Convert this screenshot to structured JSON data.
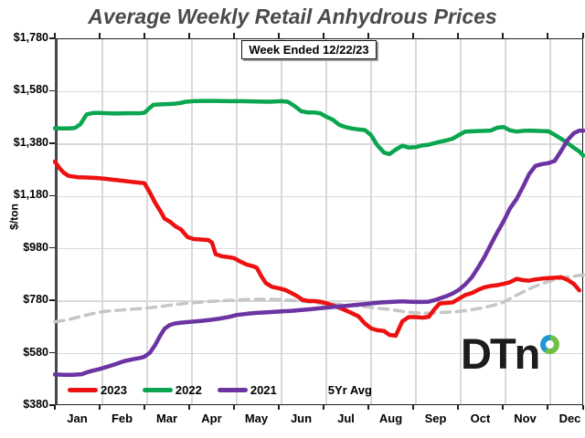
{
  "title": "Average Weekly Retail Anhydrous Prices",
  "annotation": "Week Ended 12/22/23",
  "y_axis": {
    "label": "$/ton",
    "tick_labels": [
      "$1,780",
      "$1,580",
      "$1,380",
      "$1,180",
      "$980",
      "$780",
      "$580",
      "$380"
    ]
  },
  "x_axis": {
    "tick_labels": [
      "Jan",
      "Feb",
      "Mar",
      "Apr",
      "May",
      "Jun",
      "Jul",
      "Aug",
      "Sep",
      "Oct",
      "Nov",
      "Dec"
    ]
  },
  "logo_text": "DTn",
  "colors": {
    "red_2023": "#ed1111",
    "green_2022": "#0aa64f",
    "purple_2021": "#6c34a2",
    "gray_5yr": "#c6c6c6",
    "title_gray": "#4a4a4a",
    "gridline": "#d9d9d9",
    "logo_blue": "#2397d4",
    "logo_green": "#70bf44"
  },
  "chart_data": {
    "type": "line",
    "title": "Average Weekly Retail Anhydrous Prices",
    "subtitle": "Week Ended 12/22/23",
    "ylabel": "$/ton",
    "ylim": [
      380,
      1780
    ],
    "y_gridline_step": 200,
    "xlim": [
      0,
      11.8
    ],
    "x_unit": "month index from Jan 1 (0=Jan 1, 11=Dec 1); points are weekly prices in $/ton",
    "grid": true,
    "legend_position": "bottom-inside",
    "series": [
      {
        "name": "5Yr Avg",
        "color": "#c6c6c6",
        "style": "dashed",
        "width": 3.5,
        "points": [
          [
            0,
            698
          ],
          [
            0.3,
            706
          ],
          [
            0.57,
            718
          ],
          [
            0.86,
            730
          ],
          [
            1.12,
            738
          ],
          [
            1.4,
            742
          ],
          [
            1.7,
            746
          ],
          [
            2.0,
            749
          ],
          [
            2.3,
            755
          ],
          [
            2.6,
            762
          ],
          [
            2.9,
            768
          ],
          [
            3.2,
            772
          ],
          [
            3.5,
            776
          ],
          [
            3.8,
            779
          ],
          [
            4.0,
            781
          ],
          [
            4.3,
            783
          ],
          [
            4.6,
            784
          ],
          [
            4.9,
            784
          ],
          [
            5.2,
            781
          ],
          [
            5.5,
            777
          ],
          [
            5.8,
            771
          ],
          [
            6.0,
            768
          ],
          [
            6.3,
            765
          ],
          [
            6.6,
            761
          ],
          [
            6.9,
            756
          ],
          [
            7.2,
            750
          ],
          [
            7.5,
            745
          ],
          [
            7.76,
            738
          ],
          [
            8.0,
            733
          ],
          [
            8.3,
            731
          ],
          [
            8.6,
            733
          ],
          [
            8.9,
            736
          ],
          [
            9.2,
            741
          ],
          [
            9.5,
            750
          ],
          [
            9.8,
            761
          ],
          [
            10.0,
            772
          ],
          [
            10.2,
            790
          ],
          [
            10.45,
            812
          ],
          [
            10.7,
            832
          ],
          [
            10.9,
            845
          ],
          [
            11.1,
            856
          ],
          [
            11.3,
            864
          ],
          [
            11.5,
            870
          ],
          [
            11.7,
            875
          ],
          [
            11.8,
            877
          ]
        ]
      },
      {
        "name": "2023",
        "color": "#ed1111",
        "style": "solid",
        "width": 4.5,
        "points": [
          [
            0,
            1310
          ],
          [
            0.1,
            1285
          ],
          [
            0.2,
            1267
          ],
          [
            0.31,
            1255
          ],
          [
            0.51,
            1250
          ],
          [
            0.71,
            1249
          ],
          [
            0.92,
            1247
          ],
          [
            1.12,
            1244
          ],
          [
            1.33,
            1240
          ],
          [
            1.53,
            1236
          ],
          [
            1.73,
            1232
          ],
          [
            1.9,
            1229
          ],
          [
            2.0,
            1227
          ],
          [
            2.12,
            1192
          ],
          [
            2.24,
            1152
          ],
          [
            2.35,
            1122
          ],
          [
            2.45,
            1092
          ],
          [
            2.57,
            1080
          ],
          [
            2.69,
            1063
          ],
          [
            2.82,
            1050
          ],
          [
            2.96,
            1022
          ],
          [
            3.1,
            1014
          ],
          [
            3.27,
            1012
          ],
          [
            3.43,
            1010
          ],
          [
            3.51,
            1000
          ],
          [
            3.59,
            956
          ],
          [
            3.73,
            948
          ],
          [
            3.88,
            945
          ],
          [
            4.0,
            941
          ],
          [
            4.14,
            928
          ],
          [
            4.29,
            916
          ],
          [
            4.43,
            910
          ],
          [
            4.51,
            904
          ],
          [
            4.61,
            872
          ],
          [
            4.71,
            846
          ],
          [
            4.84,
            832
          ],
          [
            5.0,
            826
          ],
          [
            5.14,
            820
          ],
          [
            5.27,
            809
          ],
          [
            5.41,
            796
          ],
          [
            5.53,
            782
          ],
          [
            5.65,
            778
          ],
          [
            5.8,
            777
          ],
          [
            5.92,
            775
          ],
          [
            6.06,
            769
          ],
          [
            6.2,
            761
          ],
          [
            6.35,
            752
          ],
          [
            6.49,
            742
          ],
          [
            6.63,
            731
          ],
          [
            6.78,
            719
          ],
          [
            6.92,
            692
          ],
          [
            7.06,
            673
          ],
          [
            7.2,
            666
          ],
          [
            7.35,
            663
          ],
          [
            7.47,
            648
          ],
          [
            7.61,
            645
          ],
          [
            7.76,
            700
          ],
          [
            7.9,
            716
          ],
          [
            8.06,
            716
          ],
          [
            8.2,
            714
          ],
          [
            8.35,
            717
          ],
          [
            8.47,
            745
          ],
          [
            8.59,
            768
          ],
          [
            8.73,
            770
          ],
          [
            8.88,
            772
          ],
          [
            9.02,
            786
          ],
          [
            9.16,
            800
          ],
          [
            9.31,
            808
          ],
          [
            9.45,
            820
          ],
          [
            9.59,
            830
          ],
          [
            9.73,
            835
          ],
          [
            9.88,
            838
          ],
          [
            10.02,
            843
          ],
          [
            10.16,
            849
          ],
          [
            10.31,
            862
          ],
          [
            10.45,
            857
          ],
          [
            10.59,
            855
          ],
          [
            10.73,
            860
          ],
          [
            10.88,
            863
          ],
          [
            11.02,
            865
          ],
          [
            11.16,
            866
          ],
          [
            11.31,
            868
          ],
          [
            11.45,
            858
          ],
          [
            11.59,
            842
          ],
          [
            11.71,
            818
          ]
        ]
      },
      {
        "name": "2022",
        "color": "#0aa64f",
        "style": "solid",
        "width": 4.5,
        "points": [
          [
            0,
            1437
          ],
          [
            0.15,
            1436
          ],
          [
            0.3,
            1436
          ],
          [
            0.45,
            1438
          ],
          [
            0.57,
            1452
          ],
          [
            0.71,
            1490
          ],
          [
            0.86,
            1495
          ],
          [
            1.0,
            1495
          ],
          [
            1.3,
            1493
          ],
          [
            1.6,
            1494
          ],
          [
            1.9,
            1494
          ],
          [
            2.0,
            1496
          ],
          [
            2.1,
            1512
          ],
          [
            2.2,
            1526
          ],
          [
            2.35,
            1528
          ],
          [
            2.5,
            1529
          ],
          [
            2.65,
            1530
          ],
          [
            2.8,
            1533
          ],
          [
            2.92,
            1538
          ],
          [
            3.1,
            1540
          ],
          [
            3.3,
            1541
          ],
          [
            3.6,
            1541
          ],
          [
            3.9,
            1540
          ],
          [
            4.2,
            1540
          ],
          [
            4.5,
            1539
          ],
          [
            4.8,
            1538
          ],
          [
            5.06,
            1540
          ],
          [
            5.2,
            1538
          ],
          [
            5.35,
            1522
          ],
          [
            5.5,
            1502
          ],
          [
            5.65,
            1497
          ],
          [
            5.8,
            1497
          ],
          [
            5.92,
            1494
          ],
          [
            6.06,
            1481
          ],
          [
            6.2,
            1470
          ],
          [
            6.35,
            1450
          ],
          [
            6.49,
            1441
          ],
          [
            6.63,
            1436
          ],
          [
            6.78,
            1432
          ],
          [
            6.92,
            1430
          ],
          [
            7.06,
            1411
          ],
          [
            7.2,
            1372
          ],
          [
            7.35,
            1344
          ],
          [
            7.47,
            1338
          ],
          [
            7.61,
            1355
          ],
          [
            7.76,
            1370
          ],
          [
            7.9,
            1363
          ],
          [
            8.06,
            1365
          ],
          [
            8.2,
            1371
          ],
          [
            8.35,
            1374
          ],
          [
            8.47,
            1380
          ],
          [
            8.59,
            1385
          ],
          [
            8.73,
            1390
          ],
          [
            8.88,
            1397
          ],
          [
            9.02,
            1411
          ],
          [
            9.16,
            1424
          ],
          [
            9.31,
            1425
          ],
          [
            9.45,
            1426
          ],
          [
            9.59,
            1427
          ],
          [
            9.73,
            1428
          ],
          [
            9.88,
            1439
          ],
          [
            10.02,
            1441
          ],
          [
            10.16,
            1429
          ],
          [
            10.31,
            1424
          ],
          [
            10.45,
            1427
          ],
          [
            10.59,
            1428
          ],
          [
            10.73,
            1427
          ],
          [
            10.88,
            1426
          ],
          [
            11.02,
            1425
          ],
          [
            11.16,
            1412
          ],
          [
            11.31,
            1396
          ],
          [
            11.45,
            1380
          ],
          [
            11.59,
            1362
          ],
          [
            11.71,
            1348
          ],
          [
            11.8,
            1332
          ]
        ]
      },
      {
        "name": "2021",
        "color": "#6c34a2",
        "style": "solid",
        "width": 4.5,
        "points": [
          [
            0,
            497
          ],
          [
            0.2,
            496
          ],
          [
            0.4,
            496
          ],
          [
            0.6,
            498
          ],
          [
            0.71,
            505
          ],
          [
            0.86,
            512
          ],
          [
            1.0,
            518
          ],
          [
            1.12,
            524
          ],
          [
            1.33,
            535
          ],
          [
            1.53,
            547
          ],
          [
            1.73,
            555
          ],
          [
            1.9,
            560
          ],
          [
            2.0,
            565
          ],
          [
            2.12,
            580
          ],
          [
            2.24,
            610
          ],
          [
            2.35,
            645
          ],
          [
            2.45,
            672
          ],
          [
            2.57,
            686
          ],
          [
            2.69,
            692
          ],
          [
            2.82,
            695
          ],
          [
            2.96,
            697
          ],
          [
            3.1,
            699
          ],
          [
            3.3,
            702
          ],
          [
            3.5,
            706
          ],
          [
            3.7,
            711
          ],
          [
            3.9,
            717
          ],
          [
            4.06,
            724
          ],
          [
            4.3,
            729
          ],
          [
            4.5,
            732
          ],
          [
            4.7,
            734
          ],
          [
            4.9,
            736
          ],
          [
            5.06,
            738
          ],
          [
            5.3,
            740
          ],
          [
            5.5,
            743
          ],
          [
            5.7,
            746
          ],
          [
            5.92,
            750
          ],
          [
            6.1,
            753
          ],
          [
            6.3,
            756
          ],
          [
            6.5,
            759
          ],
          [
            6.7,
            762
          ],
          [
            6.92,
            766
          ],
          [
            7.1,
            769
          ],
          [
            7.3,
            772
          ],
          [
            7.5,
            774
          ],
          [
            7.76,
            776
          ],
          [
            7.9,
            775
          ],
          [
            8.06,
            774
          ],
          [
            8.2,
            774
          ],
          [
            8.35,
            775
          ],
          [
            8.47,
            780
          ],
          [
            8.59,
            787
          ],
          [
            8.73,
            795
          ],
          [
            8.88,
            806
          ],
          [
            9.02,
            820
          ],
          [
            9.16,
            840
          ],
          [
            9.31,
            868
          ],
          [
            9.45,
            905
          ],
          [
            9.59,
            945
          ],
          [
            9.73,
            992
          ],
          [
            9.88,
            1040
          ],
          [
            10.02,
            1082
          ],
          [
            10.16,
            1130
          ],
          [
            10.31,
            1167
          ],
          [
            10.45,
            1212
          ],
          [
            10.59,
            1262
          ],
          [
            10.73,
            1293
          ],
          [
            10.88,
            1300
          ],
          [
            11.02,
            1304
          ],
          [
            11.16,
            1312
          ],
          [
            11.31,
            1352
          ],
          [
            11.45,
            1392
          ],
          [
            11.59,
            1418
          ],
          [
            11.71,
            1428
          ],
          [
            11.8,
            1428
          ]
        ]
      }
    ],
    "legend_order": [
      "2023",
      "2022",
      "2021",
      "5Yr Avg"
    ]
  }
}
